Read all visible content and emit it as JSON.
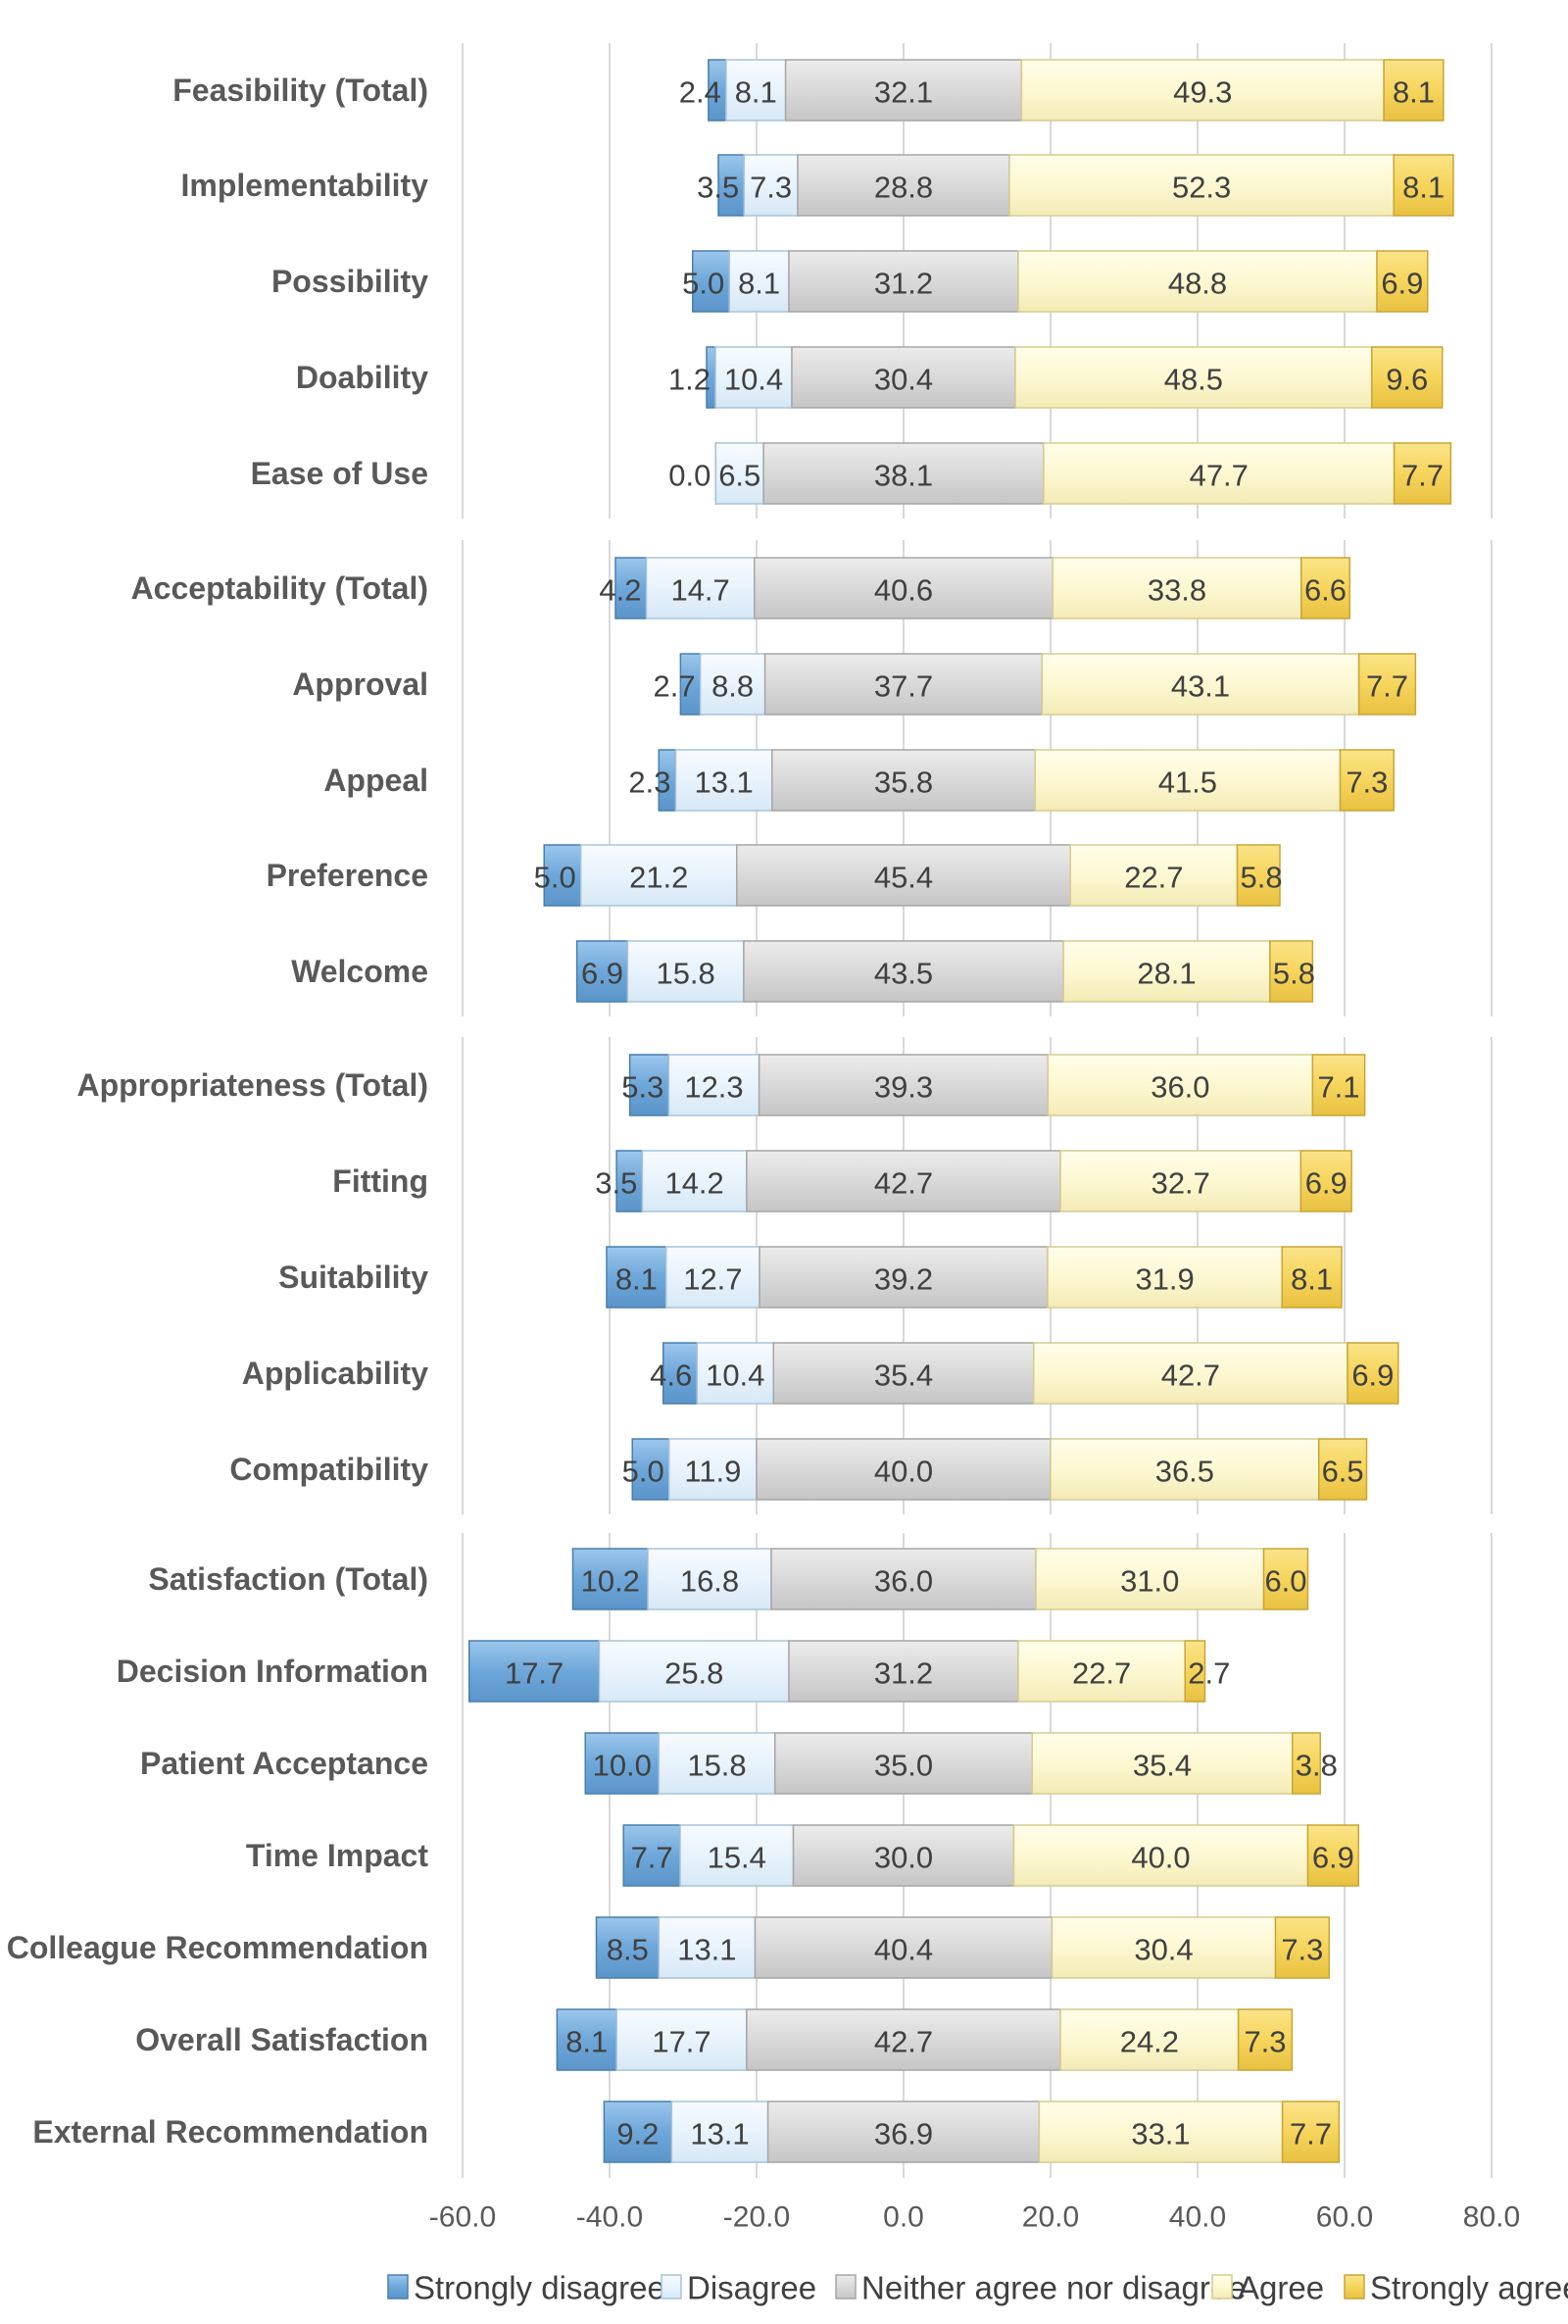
{
  "chart_data": {
    "type": "bar",
    "orientation": "horizontal",
    "stacking": "diverging",
    "xlabel": "",
    "ylabel": "",
    "xlim": [
      -60,
      80
    ],
    "xticks": [
      -60,
      -40,
      -20,
      0,
      20,
      40,
      60,
      80
    ],
    "xtick_labels": [
      "-60.0",
      "-40.0",
      "-20.0",
      "0.0",
      "20.0",
      "40.0",
      "60.0",
      "80.0"
    ],
    "grid": "vertical",
    "legend_position": "bottom",
    "series": [
      {
        "name": "Strongly disagree",
        "color": "#6fa8dc"
      },
      {
        "name": "Disagree",
        "color": "#eaf4fc"
      },
      {
        "name": "Neither agree nor disagree",
        "color": "#d9d9d9"
      },
      {
        "name": "Agree",
        "color": "#fdf8d2"
      },
      {
        "name": "Strongly agree",
        "color": "#f6d55c"
      }
    ],
    "groups": [
      {
        "rows": [
          {
            "label": "Feasibility (Total)",
            "values": [
              2.4,
              8.1,
              32.1,
              49.3,
              8.1
            ],
            "labels": [
              "2.4",
              "8.1",
              "32.1",
              "49.3",
              "8.1"
            ]
          },
          {
            "label": "Implementability",
            "values": [
              3.5,
              7.3,
              28.8,
              52.3,
              8.1
            ],
            "labels": [
              "3.5",
              "7.3",
              "28.8",
              "52.3",
              "8.1"
            ]
          },
          {
            "label": "Possibility",
            "values": [
              5.0,
              8.1,
              31.2,
              48.8,
              6.9
            ],
            "labels": [
              "5.0",
              "8.1",
              "31.2",
              "48.8",
              "6.9"
            ]
          },
          {
            "label": "Doability",
            "values": [
              1.2,
              10.4,
              30.4,
              48.5,
              9.6
            ],
            "labels": [
              "1.2",
              "10.4",
              "30.4",
              "48.5",
              "9.6"
            ]
          },
          {
            "label": "Ease of Use",
            "values": [
              0.0,
              6.5,
              38.1,
              47.7,
              7.7
            ],
            "labels": [
              "0.0",
              "6.5",
              "38.1",
              "47.7",
              "7.7"
            ]
          }
        ]
      },
      {
        "rows": [
          {
            "label": "Acceptability (Total)",
            "values": [
              4.2,
              14.7,
              40.6,
              33.8,
              6.6
            ],
            "labels": [
              "4.2",
              "14.7",
              "40.6",
              "33.8",
              "6.6"
            ]
          },
          {
            "label": "Approval",
            "values": [
              2.7,
              8.8,
              37.7,
              43.1,
              7.7
            ],
            "labels": [
              "2.7",
              "8.8",
              "37.7",
              "43.1",
              "7.7"
            ]
          },
          {
            "label": "Appeal",
            "values": [
              2.3,
              13.1,
              35.8,
              41.5,
              7.3
            ],
            "labels": [
              "2.3",
              "13.1",
              "35.8",
              "41.5",
              "7.3"
            ]
          },
          {
            "label": "Preference",
            "values": [
              5.0,
              21.2,
              45.4,
              22.7,
              5.8
            ],
            "labels": [
              "5.0",
              "21.2",
              "45.4",
              "22.7",
              "5.8"
            ]
          },
          {
            "label": "Welcome",
            "values": [
              6.9,
              15.8,
              43.5,
              28.1,
              5.8
            ],
            "labels": [
              "6.9",
              "15.8",
              "43.5",
              "28.1",
              "5.8"
            ]
          }
        ]
      },
      {
        "rows": [
          {
            "label": "Appropriateness (Total)",
            "values": [
              5.3,
              12.3,
              39.3,
              36.0,
              7.1
            ],
            "labels": [
              "5.3",
              "12.3",
              "39.3",
              "36.0",
              "7.1"
            ]
          },
          {
            "label": "Fitting",
            "values": [
              3.5,
              14.2,
              42.7,
              32.7,
              6.9
            ],
            "labels": [
              "3.5",
              "14.2",
              "42.7",
              "32.7",
              "6.9"
            ]
          },
          {
            "label": "Suitability",
            "values": [
              8.1,
              12.7,
              39.2,
              31.9,
              8.1
            ],
            "labels": [
              "8.1",
              "12.7",
              "39.2",
              "31.9",
              "8.1"
            ]
          },
          {
            "label": "Applicability",
            "values": [
              4.6,
              10.4,
              35.4,
              42.7,
              6.9
            ],
            "labels": [
              "4.6",
              "10.4",
              "35.4",
              "42.7",
              "6.9"
            ]
          },
          {
            "label": "Compatibility",
            "values": [
              5.0,
              11.9,
              40.0,
              36.5,
              6.5
            ],
            "labels": [
              "5.0",
              "11.9",
              "40.0",
              "36.5",
              "6.5"
            ]
          }
        ]
      },
      {
        "rows": [
          {
            "label": "Satisfaction (Total)",
            "values": [
              10.2,
              16.8,
              36.0,
              31.0,
              6.0
            ],
            "labels": [
              "10.2",
              "16.8",
              "36.0",
              "31.0",
              "6.0"
            ]
          },
          {
            "label": "Decision Information",
            "values": [
              17.7,
              25.8,
              31.2,
              22.7,
              2.7
            ],
            "labels": [
              "17.7",
              "25.8",
              "31.2",
              "22.7",
              "2.7"
            ]
          },
          {
            "label": "Patient Acceptance",
            "values": [
              10.0,
              15.8,
              35.0,
              35.4,
              3.8
            ],
            "labels": [
              "10.0",
              "15.8",
              "35.0",
              "35.4",
              "3.8"
            ]
          },
          {
            "label": "Time Impact",
            "values": [
              7.7,
              15.4,
              30.0,
              40.0,
              6.9
            ],
            "labels": [
              "7.7",
              "15.4",
              "30.0",
              "40.0",
              "6.9"
            ]
          },
          {
            "label": "Colleague Recommendation",
            "values": [
              8.5,
              13.1,
              40.4,
              30.4,
              7.3
            ],
            "labels": [
              "8.5",
              "13.1",
              "40.4",
              "30.4",
              "7.3"
            ]
          },
          {
            "label": "Overall Satisfaction",
            "values": [
              8.1,
              17.7,
              42.7,
              24.2,
              7.3
            ],
            "labels": [
              "8.1",
              "17.7",
              "42.7",
              "24.2",
              "7.3"
            ]
          },
          {
            "label": "External Recommendation",
            "values": [
              9.2,
              13.1,
              36.9,
              33.1,
              7.7
            ],
            "labels": [
              "9.2",
              "13.1",
              "36.9",
              "33.1",
              "7.7"
            ]
          }
        ]
      }
    ]
  }
}
